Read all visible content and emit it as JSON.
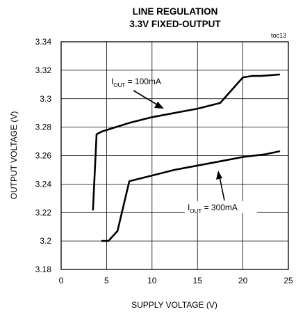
{
  "chart_data": {
    "type": "line",
    "title": "LINE REGULATION",
    "subtitle": "3.3V FIXED-OUTPUT",
    "tag": "toc13",
    "xlabel": "SUPPLY VOLTAGE (V)",
    "ylabel": "OUTPUT VOLTAGE (V)",
    "xlim": [
      0,
      25
    ],
    "ylim": [
      3.18,
      3.34
    ],
    "xticks": [
      "0",
      "5",
      "10",
      "15",
      "20",
      "25"
    ],
    "yticks": [
      "3.34",
      "3.32",
      "3.3",
      "3.28",
      "3.26",
      "3.24",
      "3.22",
      "3.2",
      "3.18"
    ],
    "grid": true,
    "series": [
      {
        "name": "IOUT = 100mA",
        "label_main": "I",
        "label_sub": "OUT",
        "label_rest": " = 100mA",
        "x": [
          3.5,
          3.9,
          4.5,
          5.5,
          7.5,
          10,
          12.5,
          15,
          17.5,
          20,
          21,
          22,
          24
        ],
        "y": [
          3.222,
          3.275,
          3.277,
          3.279,
          3.283,
          3.287,
          3.29,
          3.293,
          3.297,
          3.315,
          3.316,
          3.316,
          3.317
        ]
      },
      {
        "name": "IOUT = 300mA",
        "label_main": "I",
        "label_sub": "OUT",
        "label_rest": " = 300mA",
        "x": [
          4.5,
          5.2,
          6.2,
          7.5,
          10,
          12.5,
          15,
          17.5,
          20,
          22.5,
          24
        ],
        "y": [
          3.2,
          3.2,
          3.207,
          3.242,
          3.246,
          3.25,
          3.253,
          3.256,
          3.259,
          3.261,
          3.263
        ]
      }
    ]
  }
}
